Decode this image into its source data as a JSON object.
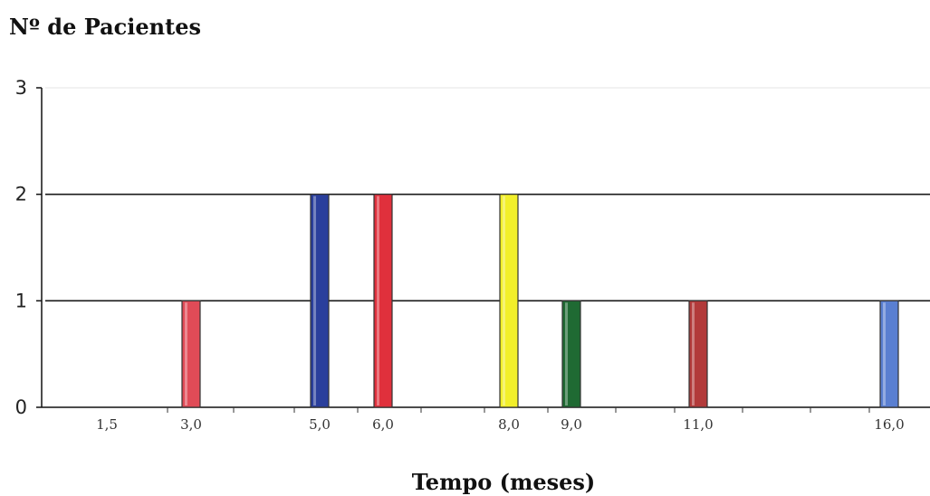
{
  "chart_data": {
    "type": "bar",
    "title": "",
    "ylabel": "Nº de Pacientes",
    "xlabel": "Tempo (meses)",
    "ylim": [
      0,
      3
    ],
    "yticks": [
      "0",
      "1",
      "2",
      "3"
    ],
    "grid": true,
    "categories": [
      "1,5",
      "3,0",
      "5,0",
      "6,0",
      "8,0",
      "9,0",
      "11,0",
      "16,0"
    ],
    "values": [
      0,
      1,
      2,
      2,
      2,
      1,
      1,
      1
    ],
    "colors": [
      "#e04b57",
      "#e04b57",
      "#2a3f9c",
      "#e0303c",
      "#f2ef2a",
      "#1f6a33",
      "#b23a3a",
      "#5a7fd1"
    ]
  }
}
